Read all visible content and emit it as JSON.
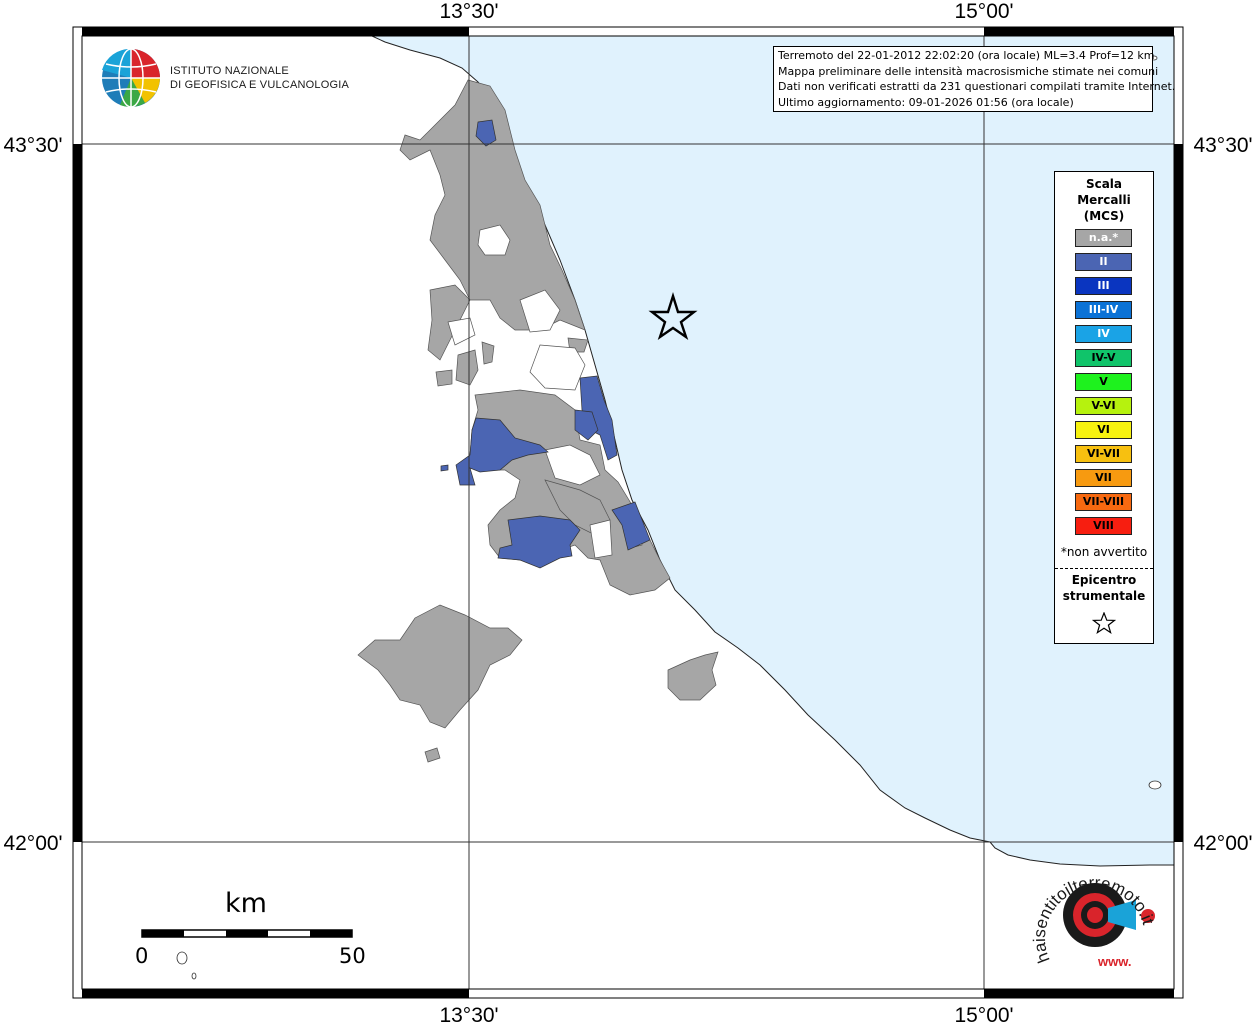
{
  "coordinates": {
    "top": [
      "13°30'",
      "15°00'"
    ],
    "bottom": [
      "13°30'",
      "15°00'"
    ],
    "left": [
      "43°30'",
      "42°00'"
    ],
    "right": [
      "43°30'",
      "42°00'"
    ]
  },
  "institute": {
    "line1": "ISTITUTO NAZIONALE",
    "line2": "DI GEOFISICA E VULCANOLOGIA"
  },
  "info_box": {
    "line1": "Terremoto del 22-01-2012 22:02:20 (ora locale) ML=3.4 Prof=12 km",
    "line2": "Mappa preliminare delle intensità macrosismiche stimate nei comuni",
    "line3": "Dati non verificati estratti da 231 questionari compilati tramite Internet.",
    "line4": "Ultimo aggiornamento: 09-01-2026 01:56 (ora locale)"
  },
  "legend": {
    "title": [
      "Scala",
      "Mercalli",
      "(MCS)"
    ],
    "items": [
      {
        "label": "n.a.*",
        "color": "#a6a6a6"
      },
      {
        "label": "II",
        "color": "#4b65b3"
      },
      {
        "label": "III",
        "color": "#0a35c0"
      },
      {
        "label": "III-IV",
        "color": "#0b72d6"
      },
      {
        "label": "IV",
        "color": "#1aa3e6"
      },
      {
        "label": "IV-V",
        "color": "#10c46a"
      },
      {
        "label": "V",
        "color": "#1ef21e"
      },
      {
        "label": "V-VI",
        "color": "#b6f20e"
      },
      {
        "label": "VI",
        "color": "#f7f210"
      },
      {
        "label": "VI-VII",
        "color": "#f7c010"
      },
      {
        "label": "VII",
        "color": "#f79a10"
      },
      {
        "label": "VII-VIII",
        "color": "#f76910"
      },
      {
        "label": "VIII",
        "color": "#f71e10"
      }
    ],
    "note": "*non avvertito",
    "epicenter": [
      "Epicentro",
      "strumentale"
    ]
  },
  "scale_bar": {
    "unit": "km",
    "min_label": "0",
    "max_label": "50"
  },
  "watermark": {
    "text": "haisentitoilterremoto.it",
    "url": "www."
  },
  "colors": {
    "sea": "#e0f2fd",
    "land": "#ffffff",
    "not_felt": "#a6a6a6",
    "intensity_II": "#4b65b3"
  }
}
